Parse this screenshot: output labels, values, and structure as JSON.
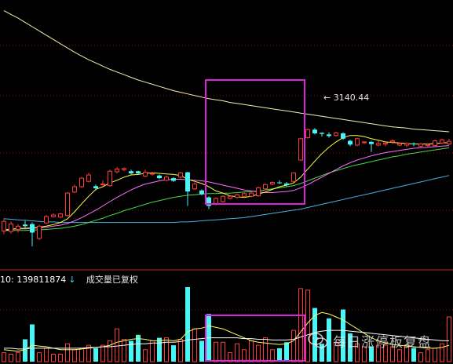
{
  "colors": {
    "background": "#000000",
    "up_candle": "#ff3a3a",
    "down_candle": "#49f5f5",
    "grid": "#8a0c0c",
    "ma_long_1": "#f0f0b0",
    "ma_long_2": "#4ab0e0",
    "ma_mid": "#48d848",
    "ma_short_1": "#ffff40",
    "ma_short_2": "#ff6eff",
    "highlight_box": "#dd22dd",
    "volume_ma_1": "#ffff60",
    "volume_ma_2": "#ffffff"
  },
  "price_annotation": "3140.44",
  "volume_panel": {
    "label": "10:",
    "value": "139811874",
    "arrow_icon": "down-arrow-icon",
    "note": "成交量已复权"
  },
  "watermark": {
    "icon": "wechat-icon",
    "text": "每日涨停板复盘"
  },
  "chart_data": {
    "type": "candlestick",
    "candles": [
      {
        "o": 2885,
        "c": 2867,
        "h": 2890,
        "l": 2861,
        "dir": "up"
      },
      {
        "o": 2866,
        "c": 2880,
        "h": 2885,
        "l": 2862,
        "dir": "up"
      },
      {
        "o": 2870,
        "c": 2876,
        "h": 2880,
        "l": 2864,
        "dir": "up"
      },
      {
        "o": 2876,
        "c": 2879,
        "h": 2886,
        "l": 2872,
        "dir": "down"
      },
      {
        "o": 2880,
        "c": 2864,
        "h": 2883,
        "l": 2838,
        "dir": "down"
      },
      {
        "o": 2853,
        "c": 2876,
        "h": 2879,
        "l": 2850,
        "dir": "up"
      },
      {
        "o": 2882,
        "c": 2894,
        "h": 2897,
        "l": 2880,
        "dir": "up"
      },
      {
        "o": 2894,
        "c": 2897,
        "h": 2900,
        "l": 2892,
        "dir": "up"
      },
      {
        "o": 2893,
        "c": 2899,
        "h": 2901,
        "l": 2891,
        "dir": "up"
      },
      {
        "o": 2896,
        "c": 2938,
        "h": 2940,
        "l": 2894,
        "dir": "up"
      },
      {
        "o": 2940,
        "c": 2950,
        "h": 2954,
        "l": 2938,
        "dir": "up"
      },
      {
        "o": 2950,
        "c": 2966,
        "h": 2968,
        "l": 2948,
        "dir": "up"
      },
      {
        "o": 2960,
        "c": 2972,
        "h": 2976,
        "l": 2958,
        "dir": "up"
      },
      {
        "o": 2951,
        "c": 2947,
        "h": 2954,
        "l": 2943,
        "dir": "down"
      },
      {
        "o": 2954,
        "c": 2955,
        "h": 2962,
        "l": 2952,
        "dir": "up"
      },
      {
        "o": 2952,
        "c": 2979,
        "h": 2982,
        "l": 2950,
        "dir": "up"
      },
      {
        "o": 2978,
        "c": 2983,
        "h": 2987,
        "l": 2975,
        "dir": "up"
      },
      {
        "o": 2982,
        "c": 2984,
        "h": 2986,
        "l": 2979,
        "dir": "up"
      },
      {
        "o": 2975,
        "c": 2979,
        "h": 2982,
        "l": 2973,
        "dir": "down"
      },
      {
        "o": 2979,
        "c": 2975,
        "h": 2980,
        "l": 2972,
        "dir": "down"
      },
      {
        "o": 2970,
        "c": 2977,
        "h": 2982,
        "l": 2968,
        "dir": "up"
      },
      {
        "o": 2975,
        "c": 2974,
        "h": 2978,
        "l": 2971,
        "dir": "up"
      },
      {
        "o": 2971,
        "c": 2966,
        "h": 2973,
        "l": 2964,
        "dir": "down"
      },
      {
        "o": 2962,
        "c": 2968,
        "h": 2971,
        "l": 2960,
        "dir": "up"
      },
      {
        "o": 2966,
        "c": 2961,
        "h": 2968,
        "l": 2959,
        "dir": "down"
      },
      {
        "o": 2968,
        "c": 2976,
        "h": 2978,
        "l": 2965,
        "dir": "up"
      },
      {
        "o": 2977,
        "c": 2941,
        "h": 2978,
        "l": 2914,
        "dir": "down"
      },
      {
        "o": 2946,
        "c": 2955,
        "h": 2958,
        "l": 2944,
        "dir": "up"
      },
      {
        "o": 2943,
        "c": 2936,
        "h": 2945,
        "l": 2934,
        "dir": "down"
      },
      {
        "o": 2930,
        "c": 2914,
        "h": 2932,
        "l": 2908,
        "dir": "down"
      },
      {
        "o": 2917,
        "c": 2928,
        "h": 2930,
        "l": 2915,
        "dir": "up"
      },
      {
        "o": 2922,
        "c": 2932,
        "h": 2934,
        "l": 2920,
        "dir": "up"
      },
      {
        "o": 2928,
        "c": 2932,
        "h": 2934,
        "l": 2926,
        "dir": "up"
      },
      {
        "o": 2930,
        "c": 2935,
        "h": 2937,
        "l": 2928,
        "dir": "up"
      },
      {
        "o": 2932,
        "c": 2937,
        "h": 2939,
        "l": 2930,
        "dir": "up"
      },
      {
        "o": 2932,
        "c": 2938,
        "h": 2940,
        "l": 2930,
        "dir": "up"
      },
      {
        "o": 2933,
        "c": 2948,
        "h": 2950,
        "l": 2931,
        "dir": "up"
      },
      {
        "o": 2946,
        "c": 2954,
        "h": 2956,
        "l": 2944,
        "dir": "up"
      },
      {
        "o": 2955,
        "c": 2958,
        "h": 2960,
        "l": 2953,
        "dir": "up"
      },
      {
        "o": 2958,
        "c": 2958,
        "h": 2962,
        "l": 2955,
        "dir": "down"
      },
      {
        "o": 2956,
        "c": 2953,
        "h": 2959,
        "l": 2951,
        "dir": "down"
      },
      {
        "o": 2960,
        "c": 2976,
        "h": 2977,
        "l": 2958,
        "dir": "up"
      },
      {
        "o": 3000,
        "c": 3040,
        "h": 3042,
        "l": 2998,
        "dir": "up"
      },
      {
        "o": 3042,
        "c": 3057,
        "h": 3059,
        "l": 3040,
        "dir": "up"
      },
      {
        "o": 3057,
        "c": 3050,
        "h": 3060,
        "l": 3048,
        "dir": "down"
      },
      {
        "o": 3049,
        "c": 3051,
        "h": 3052,
        "l": 3044,
        "dir": "down"
      },
      {
        "o": 3048,
        "c": 3045,
        "h": 3052,
        "l": 3042,
        "dir": "down"
      },
      {
        "o": 3046,
        "c": 3051,
        "h": 3053,
        "l": 3044,
        "dir": "up"
      },
      {
        "o": 3050,
        "c": 3040,
        "h": 3052,
        "l": 3038,
        "dir": "down"
      },
      {
        "o": 3036,
        "c": 3029,
        "h": 3038,
        "l": 3026,
        "dir": "down"
      },
      {
        "o": 3028,
        "c": 3040,
        "h": 3042,
        "l": 3026,
        "dir": "up"
      },
      {
        "o": 3033,
        "c": 3034,
        "h": 3035,
        "l": 3030,
        "dir": "up"
      },
      {
        "o": 3034,
        "c": 3030,
        "h": 3036,
        "l": 3015,
        "dir": "down"
      },
      {
        "o": 3031,
        "c": 3028,
        "h": 3036,
        "l": 3026,
        "dir": "up"
      },
      {
        "o": 3030,
        "c": 3032,
        "h": 3034,
        "l": 3026,
        "dir": "up"
      },
      {
        "o": 3034,
        "c": 3036,
        "h": 3039,
        "l": 3030,
        "dir": "up"
      },
      {
        "o": 3028,
        "c": 3031,
        "h": 3033,
        "l": 3026,
        "dir": "up"
      },
      {
        "o": 3031,
        "c": 3028,
        "h": 3033,
        "l": 3024,
        "dir": "up"
      },
      {
        "o": 3030,
        "c": 3031,
        "h": 3033,
        "l": 3026,
        "dir": "down"
      },
      {
        "o": 3026,
        "c": 3030,
        "h": 3032,
        "l": 3022,
        "dir": "up"
      },
      {
        "o": 3027,
        "c": 3029,
        "h": 3031,
        "l": 3025,
        "dir": "up"
      },
      {
        "o": 3027,
        "c": 3036,
        "h": 3038,
        "l": 3024,
        "dir": "up"
      },
      {
        "o": 3032,
        "c": 3038,
        "h": 3040,
        "l": 3030,
        "dir": "up"
      },
      {
        "o": 3030,
        "c": 3035,
        "h": 3040,
        "l": 3028,
        "dir": "up"
      }
    ],
    "volumes": [
      {
        "v": 12,
        "dir": "up"
      },
      {
        "v": 10,
        "dir": "up"
      },
      {
        "v": 12,
        "dir": "up"
      },
      {
        "v": 30,
        "dir": "down"
      },
      {
        "v": 50,
        "dir": "down"
      },
      {
        "v": 12,
        "dir": "up"
      },
      {
        "v": 18,
        "dir": "up"
      },
      {
        "v": 10,
        "dir": "up"
      },
      {
        "v": 10,
        "dir": "up"
      },
      {
        "v": 24,
        "dir": "up"
      },
      {
        "v": 16,
        "dir": "up"
      },
      {
        "v": 18,
        "dir": "up"
      },
      {
        "v": 22,
        "dir": "up"
      },
      {
        "v": 18,
        "dir": "down"
      },
      {
        "v": 22,
        "dir": "up"
      },
      {
        "v": 28,
        "dir": "up"
      },
      {
        "v": 44,
        "dir": "up"
      },
      {
        "v": 30,
        "dir": "up"
      },
      {
        "v": 28,
        "dir": "down"
      },
      {
        "v": 36,
        "dir": "down"
      },
      {
        "v": 16,
        "dir": "up"
      },
      {
        "v": 28,
        "dir": "up"
      },
      {
        "v": 32,
        "dir": "down"
      },
      {
        "v": 32,
        "dir": "up"
      },
      {
        "v": 22,
        "dir": "down"
      },
      {
        "v": 30,
        "dir": "up"
      },
      {
        "v": 100,
        "dir": "down"
      },
      {
        "v": 44,
        "dir": "up"
      },
      {
        "v": 28,
        "dir": "down"
      },
      {
        "v": 64,
        "dir": "down"
      },
      {
        "v": 26,
        "dir": "up"
      },
      {
        "v": 26,
        "dir": "up"
      },
      {
        "v": 12,
        "dir": "up"
      },
      {
        "v": 24,
        "dir": "up"
      },
      {
        "v": 16,
        "dir": "up"
      },
      {
        "v": 28,
        "dir": "up"
      },
      {
        "v": 22,
        "dir": "up"
      },
      {
        "v": 32,
        "dir": "up"
      },
      {
        "v": 16,
        "dir": "up"
      },
      {
        "v": 18,
        "dir": "down"
      },
      {
        "v": 26,
        "dir": "down"
      },
      {
        "v": 42,
        "dir": "up"
      },
      {
        "v": 98,
        "dir": "up"
      },
      {
        "v": 96,
        "dir": "up"
      },
      {
        "v": 72,
        "dir": "down"
      },
      {
        "v": 24,
        "dir": "down"
      },
      {
        "v": 58,
        "dir": "down"
      },
      {
        "v": 26,
        "dir": "up"
      },
      {
        "v": 70,
        "dir": "down"
      },
      {
        "v": 38,
        "dir": "down"
      },
      {
        "v": 24,
        "dir": "up"
      },
      {
        "v": 20,
        "dir": "up"
      },
      {
        "v": 20,
        "dir": "down"
      },
      {
        "v": 22,
        "dir": "up"
      },
      {
        "v": 22,
        "dir": "up"
      },
      {
        "v": 20,
        "dir": "up"
      },
      {
        "v": 16,
        "dir": "up"
      },
      {
        "v": 22,
        "dir": "up"
      },
      {
        "v": 18,
        "dir": "down"
      },
      {
        "v": 12,
        "dir": "up"
      },
      {
        "v": 16,
        "dir": "up"
      },
      {
        "v": 18,
        "dir": "up"
      },
      {
        "v": 24,
        "dir": "up"
      },
      {
        "v": 60,
        "dir": "up"
      }
    ],
    "ma_short_1": [
      2868,
      2870,
      2872,
      2872,
      2873,
      2874,
      2876,
      2879,
      2883,
      2890,
      2903,
      2918,
      2932,
      2945,
      2950,
      2957,
      2962,
      2968,
      2972,
      2973,
      2975,
      2976,
      2975,
      2974,
      2973,
      2971,
      2964,
      2960,
      2956,
      2950,
      2942,
      2938,
      2933,
      2931,
      2930,
      2932,
      2936,
      2940,
      2945,
      2950,
      2953,
      2957,
      2968,
      2983,
      2998,
      3012,
      3024,
      3034,
      3042,
      3046,
      3046,
      3044,
      3040,
      3037,
      3034,
      3033,
      3032,
      3031,
      3030,
      3030,
      3030,
      3031,
      3032,
      3033
    ],
    "ma_short_2": [
      2870,
      2870,
      2871,
      2871,
      2872,
      2873,
      2874,
      2876,
      2878,
      2881,
      2886,
      2892,
      2899,
      2906,
      2914,
      2922,
      2930,
      2937,
      2944,
      2950,
      2955,
      2958,
      2961,
      2963,
      2964,
      2964,
      2963,
      2962,
      2961,
      2959,
      2956,
      2953,
      2950,
      2947,
      2944,
      2942,
      2940,
      2939,
      2939,
      2940,
      2941,
      2943,
      2948,
      2954,
      2961,
      2968,
      2975,
      2982,
      2989,
      2995,
      3000,
      3004,
      3008,
      3011,
      3014,
      3016,
      3018,
      3020,
      3022,
      3023,
      3024,
      3025,
      3026,
      3027
    ],
    "ma_mid": [
      2868,
      2868,
      2868,
      2868,
      2869,
      2869,
      2870,
      2871,
      2872,
      2874,
      2876,
      2879,
      2883,
      2887,
      2891,
      2896,
      2900,
      2905,
      2909,
      2913,
      2917,
      2921,
      2924,
      2927,
      2930,
      2932,
      2934,
      2935,
      2936,
      2937,
      2937,
      2938,
      2938,
      2939,
      2940,
      2941,
      2942,
      2944,
      2946,
      2948,
      2950,
      2952,
      2956,
      2961,
      2966,
      2971,
      2976,
      2980,
      2984,
      2988,
      2991,
      2994,
      2997,
      3000,
      3003,
      3006,
      3008,
      3011,
      3013,
      3015,
      3017,
      3019,
      3021,
      3023
    ],
    "ma_long_1": [
      3280,
      3273,
      3266,
      3258,
      3250,
      3242,
      3234,
      3226,
      3218,
      3210,
      3202,
      3195,
      3188,
      3182,
      3176,
      3170,
      3165,
      3160,
      3155,
      3150,
      3146,
      3142,
      3138,
      3134,
      3130,
      3127,
      3124,
      3121,
      3118,
      3115,
      3113,
      3111,
      3108,
      3106,
      3104,
      3102,
      3100,
      3098,
      3096,
      3094,
      3092,
      3090,
      3088,
      3086,
      3084,
      3082,
      3080,
      3078,
      3076,
      3074,
      3072,
      3070,
      3068,
      3066,
      3064,
      3062,
      3061,
      3060,
      3058,
      3057,
      3056,
      3055,
      3054,
      3053
    ],
    "ma_long_2": [
      2890,
      2889,
      2888,
      2887,
      2886,
      2885,
      2884,
      2884,
      2883,
      2883,
      2883,
      2883,
      2883,
      2883,
      2883,
      2883,
      2883,
      2883,
      2883,
      2883,
      2883,
      2883,
      2883,
      2883,
      2883,
      2884,
      2884,
      2885,
      2886,
      2887,
      2888,
      2889,
      2890,
      2891,
      2892,
      2894,
      2896,
      2898,
      2900,
      2902,
      2904,
      2906,
      2908,
      2911,
      2914,
      2917,
      2920,
      2923,
      2926,
      2929,
      2932,
      2935,
      2938,
      2941,
      2944,
      2947,
      2950,
      2953,
      2956,
      2959,
      2962,
      2965,
      2968,
      2971
    ],
    "volume_ma_1": [
      16,
      15,
      14,
      16,
      22,
      21,
      20,
      18,
      16,
      16,
      16,
      17,
      18,
      19,
      20,
      22,
      26,
      28,
      30,
      31,
      30,
      28,
      28,
      29,
      28,
      30,
      40,
      44,
      45,
      48,
      46,
      44,
      40,
      36,
      32,
      28,
      26,
      25,
      24,
      23,
      24,
      28,
      40,
      52,
      62,
      66,
      64,
      60,
      56,
      50,
      44,
      38,
      32,
      28,
      25,
      23,
      22,
      21,
      20,
      19,
      18,
      18,
      19,
      22
    ],
    "volume_ma_2": [
      18,
      18,
      17,
      17,
      18,
      18,
      18,
      18,
      18,
      18,
      18,
      18,
      19,
      19,
      20,
      20,
      21,
      22,
      23,
      24,
      24,
      25,
      25,
      26,
      26,
      27,
      29,
      30,
      31,
      32,
      32,
      32,
      32,
      32,
      31,
      31,
      30,
      30,
      29,
      29,
      29,
      30,
      33,
      36,
      39,
      41,
      42,
      42,
      42,
      41,
      40,
      39,
      38,
      37,
      36,
      35,
      34,
      33,
      32,
      31,
      30,
      29,
      28,
      28
    ],
    "highlight_range": [
      29,
      42
    ]
  }
}
